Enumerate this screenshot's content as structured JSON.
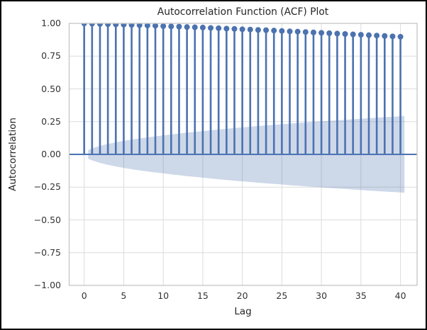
{
  "window": {
    "background_color": "#ffffff",
    "frame_color": "#000000"
  },
  "chart_data": {
    "type": "stem",
    "title": "Autocorrelation Function (ACF) Plot",
    "xlabel": "Lag",
    "ylabel": "Autocorrelation",
    "grid": true,
    "legend": false,
    "xlim": [
      -1.9,
      42.1
    ],
    "ylim": [
      -1.0,
      1.0
    ],
    "x_ticks": [
      0,
      5,
      10,
      15,
      20,
      25,
      30,
      35,
      40
    ],
    "x_tick_labels": [
      "0",
      "5",
      "10",
      "15",
      "20",
      "25",
      "30",
      "35",
      "40"
    ],
    "y_ticks": [
      1.0,
      0.75,
      0.5,
      0.25,
      0.0,
      -0.25,
      -0.5,
      -0.75,
      -1.0
    ],
    "y_tick_labels": [
      "1.00",
      "0.75",
      "0.50",
      "0.25",
      "0.00",
      "−0.25",
      "−0.50",
      "−0.75",
      "−1.00"
    ],
    "lags": [
      0,
      1,
      2,
      3,
      4,
      5,
      6,
      7,
      8,
      9,
      10,
      11,
      12,
      13,
      14,
      15,
      16,
      17,
      18,
      19,
      20,
      21,
      22,
      23,
      24,
      25,
      26,
      27,
      28,
      29,
      30,
      31,
      32,
      33,
      34,
      35,
      36,
      37,
      38,
      39,
      40
    ],
    "acf_values": [
      1.0,
      0.998,
      0.996,
      0.994,
      0.992,
      0.99,
      0.988,
      0.986,
      0.984,
      0.982,
      0.979,
      0.977,
      0.975,
      0.972,
      0.97,
      0.968,
      0.965,
      0.963,
      0.96,
      0.958,
      0.955,
      0.953,
      0.95,
      0.948,
      0.945,
      0.942,
      0.939,
      0.937,
      0.934,
      0.931,
      0.928,
      0.925,
      0.922,
      0.919,
      0.916,
      0.913,
      0.91,
      0.907,
      0.904,
      0.901,
      0.898
    ],
    "zero_line_value": 0.0,
    "confidence_band": {
      "description": "symmetric confidence interval around zero, widening with lag",
      "lags": [
        0.5,
        1,
        2,
        3,
        4,
        5,
        6,
        7,
        8,
        9,
        10,
        11,
        12,
        13,
        14,
        15,
        16,
        17,
        18,
        19,
        20,
        21,
        22,
        23,
        24,
        25,
        26,
        27,
        28,
        29,
        30,
        31,
        32,
        33,
        34,
        35,
        36,
        37,
        38,
        39,
        40,
        40.5
      ],
      "half_width": [
        0.033,
        0.046,
        0.065,
        0.08,
        0.092,
        0.103,
        0.113,
        0.122,
        0.13,
        0.138,
        0.145,
        0.153,
        0.159,
        0.166,
        0.172,
        0.178,
        0.184,
        0.19,
        0.195,
        0.201,
        0.206,
        0.211,
        0.216,
        0.221,
        0.225,
        0.23,
        0.235,
        0.239,
        0.243,
        0.248,
        0.252,
        0.256,
        0.26,
        0.264,
        0.268,
        0.272,
        0.276,
        0.28,
        0.284,
        0.287,
        0.291,
        0.293
      ]
    },
    "colors": {
      "stem": "#4C72B0",
      "marker": "#4C72B0",
      "zero_line": "#4C72B0",
      "band_fill": "rgba(76,114,176,0.28)",
      "grid": "#dcdcdc",
      "spine": "#c6c6c6",
      "text": "#262626"
    }
  }
}
